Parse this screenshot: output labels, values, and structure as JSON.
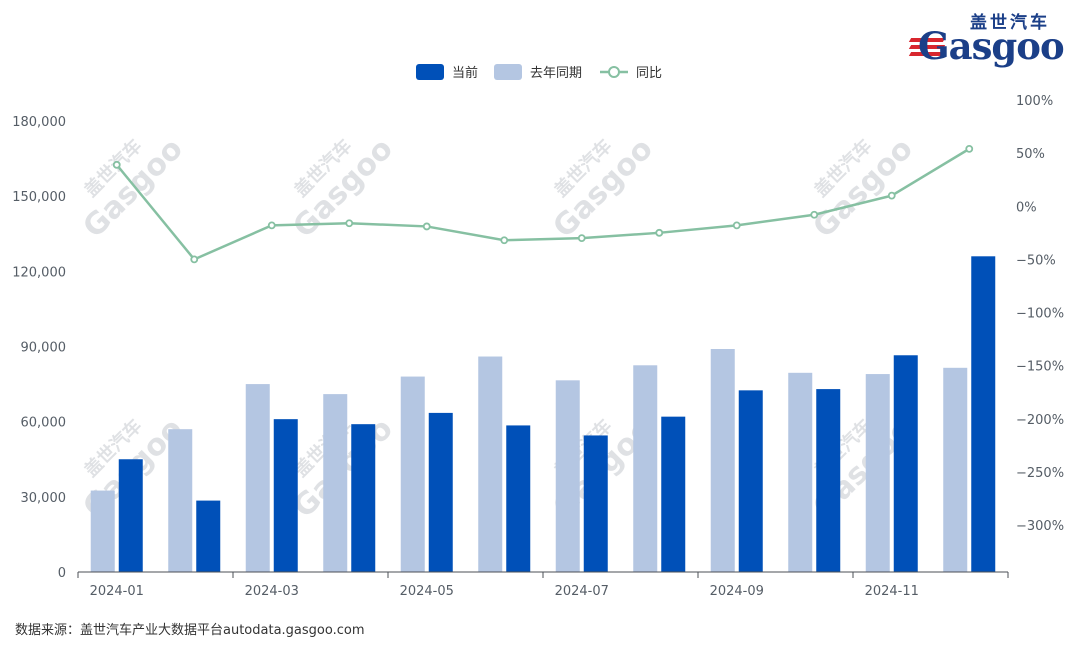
{
  "logo": {
    "cn_text": "盖世汽车",
    "en_text": "Gasgoo"
  },
  "watermark": {
    "cn_text": "盖世汽车",
    "en_text": "Gasgoo"
  },
  "source_text": "数据来源：盖世汽车产业大数据平台autodata.gasgoo.com",
  "colors": {
    "current": "#0050b8",
    "last_year": "#b4c6e2",
    "yoy": "#86c0a2",
    "axis": "#4b4f55"
  },
  "chart_data": {
    "type": "bar",
    "months": [
      "2024-01",
      "2024-02",
      "2024-03",
      "2024-04",
      "2024-05",
      "2024-06",
      "2024-07",
      "2024-08",
      "2024-09",
      "2024-10",
      "2024-11",
      "2024-12"
    ],
    "x_tick_labels": [
      "2024-01",
      "2024-03",
      "2024-05",
      "2024-07",
      "2024-09",
      "2024-11"
    ],
    "series": [
      {
        "name": "当前",
        "type": "bar",
        "axis": "left",
        "values": [
          45000,
          28500,
          61000,
          59000,
          63500,
          58500,
          54500,
          62000,
          72500,
          73000,
          86500,
          126000
        ]
      },
      {
        "name": "去年同期",
        "type": "bar",
        "axis": "left",
        "values": [
          32500,
          57000,
          75000,
          71000,
          78000,
          86000,
          76500,
          82500,
          89000,
          79500,
          79000,
          81500
        ]
      },
      {
        "name": "同比",
        "type": "line",
        "axis": "right",
        "unit": "%",
        "values": [
          39,
          -50,
          -18,
          -16,
          -19,
          -32,
          -30,
          -25,
          -18,
          -8,
          10,
          54
        ]
      }
    ],
    "y_left": {
      "min": 0,
      "max": 180000,
      "ticks": [
        "0",
        "30,000",
        "60,000",
        "90,000",
        "120,000",
        "150,000",
        "180,000"
      ]
    },
    "y_right": {
      "min": -350,
      "max": 100,
      "ticks": [
        "100%",
        "50%",
        "0%",
        "−50%",
        "−100%",
        "−150%",
        "−200%",
        "−250%",
        "−300%"
      ]
    },
    "legend_position": "top-center",
    "grid": false
  }
}
